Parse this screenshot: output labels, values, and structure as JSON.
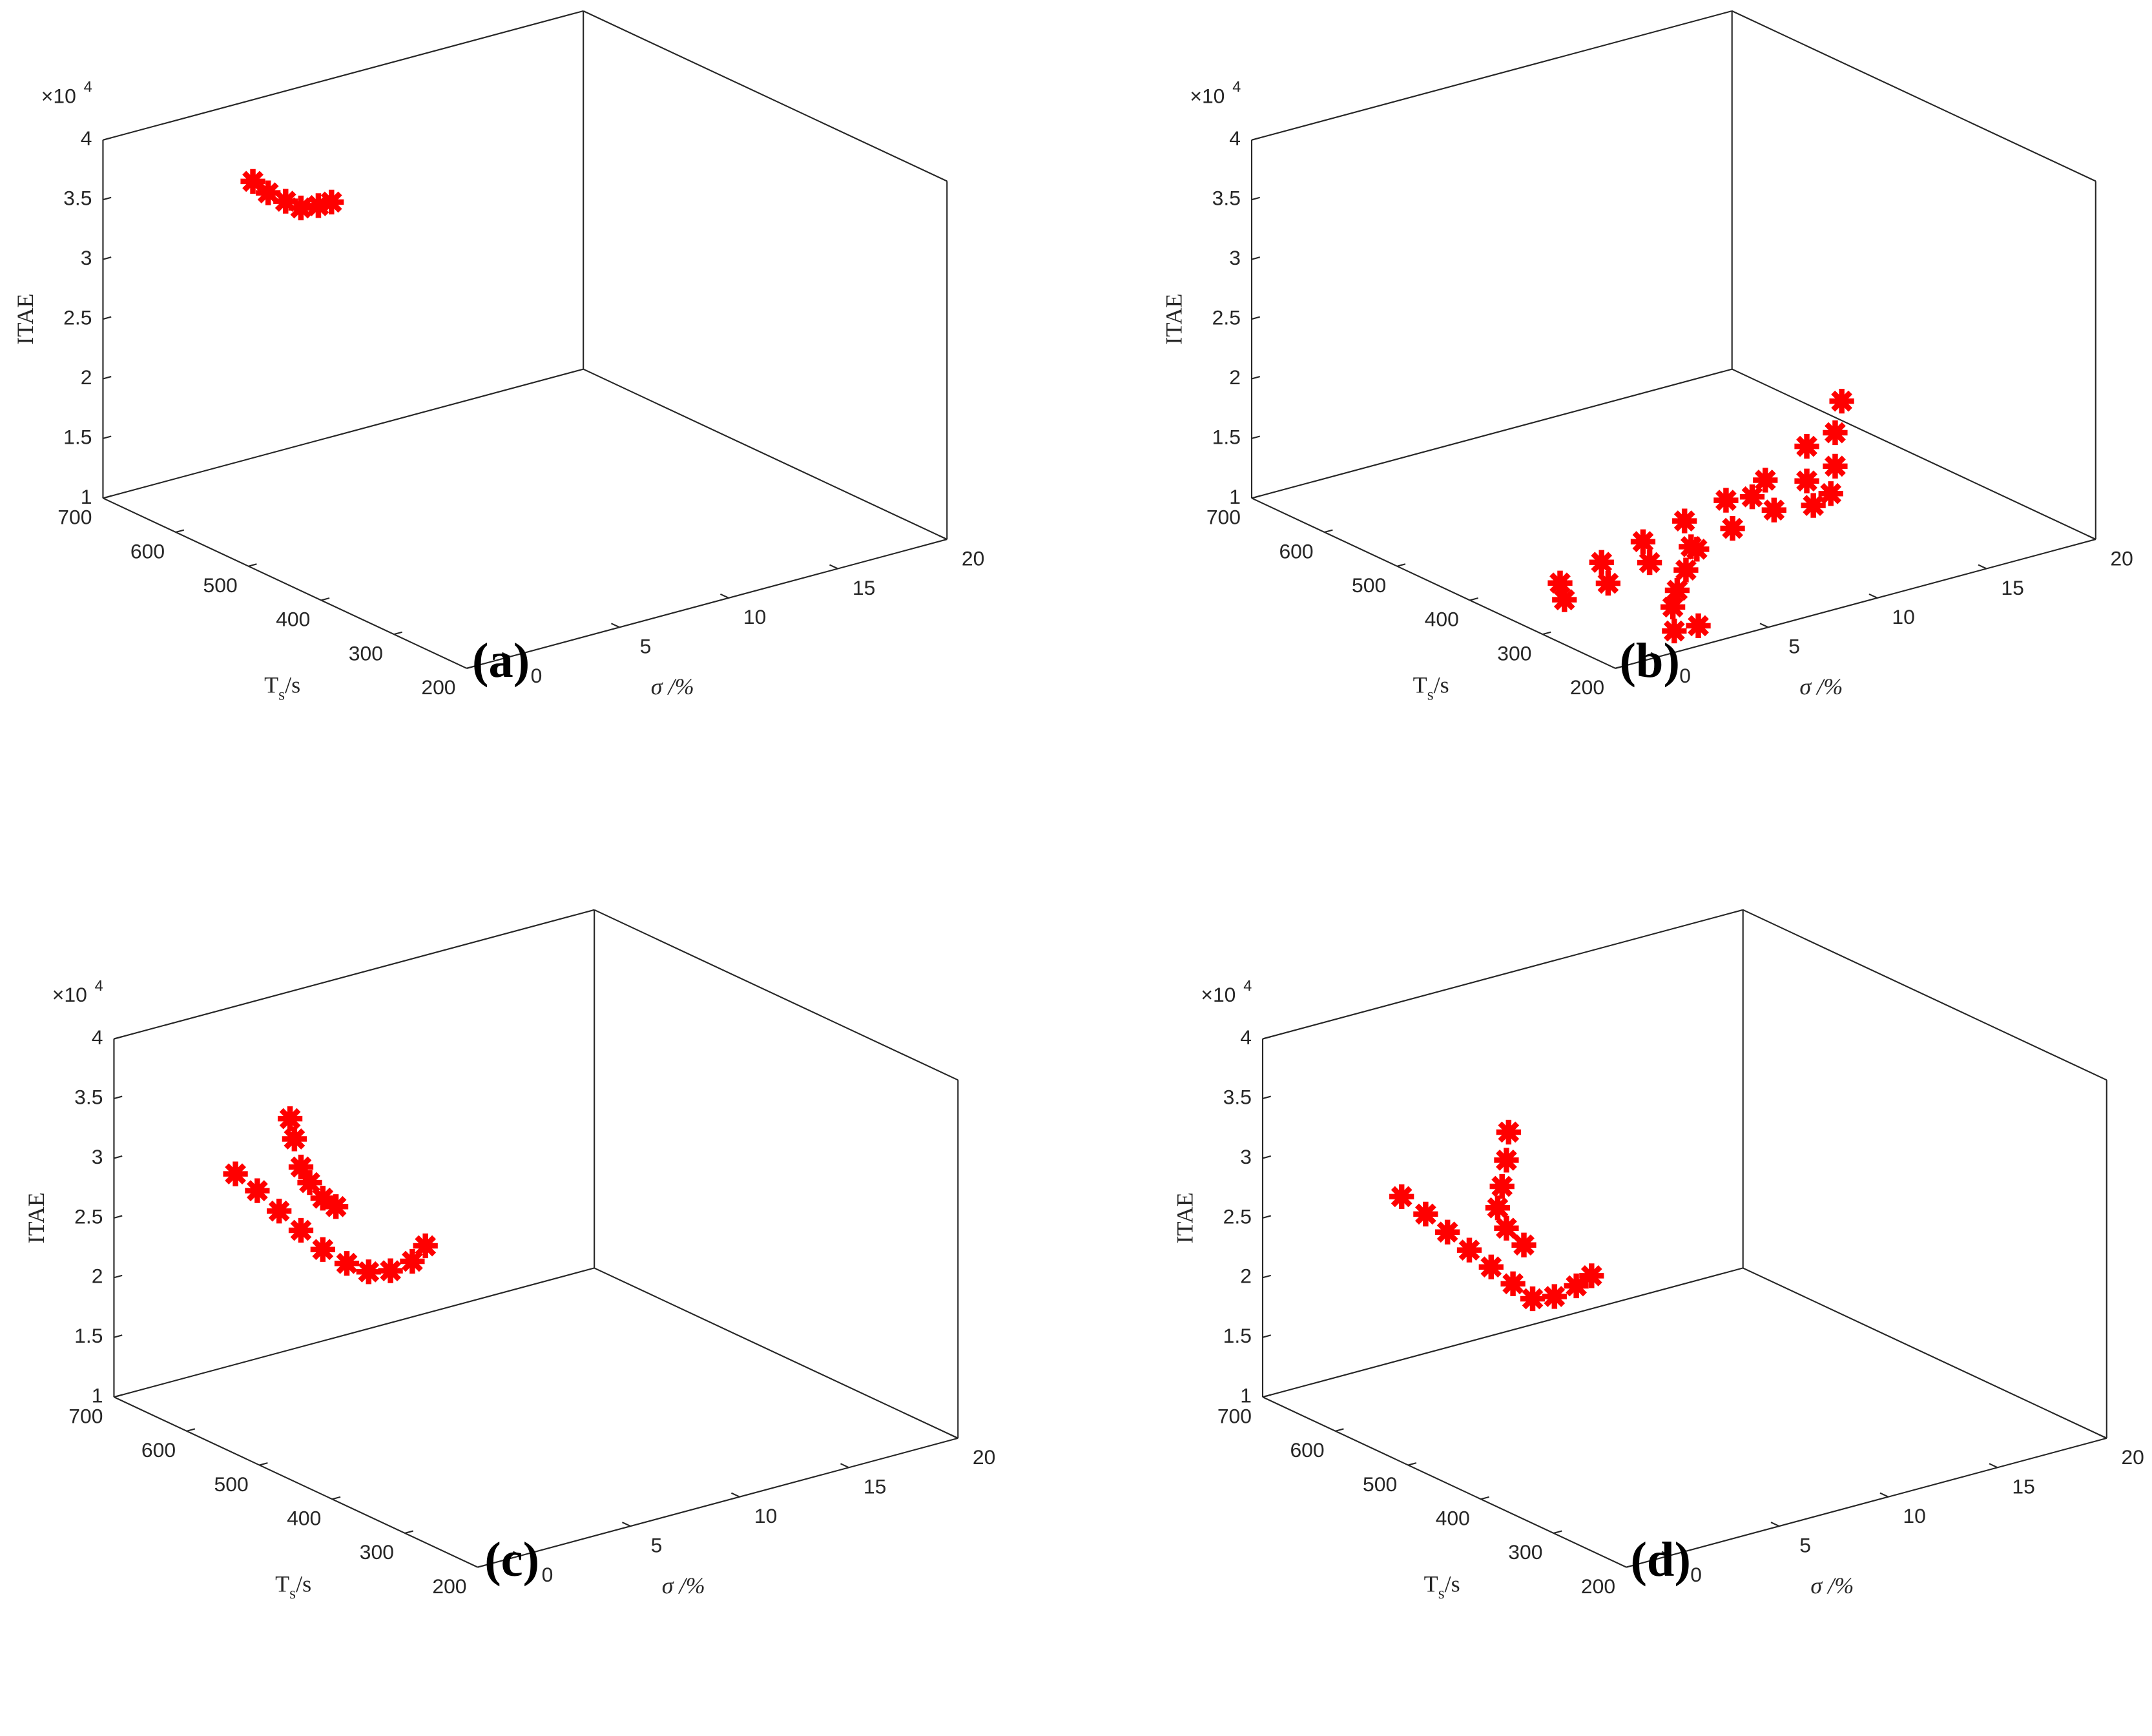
{
  "chart_data": [
    {
      "type": "scatter3d",
      "label": "(a)",
      "xlabel": "σ /%",
      "ylabel": "T",
      "ylabel_subscript": "s",
      "ylabel_suffix": "/s",
      "zlabel": "ITAE",
      "zscale_base": "×10",
      "zscale_exponent": "4",
      "xlim": [
        -2,
        20
      ],
      "xticks": [
        0,
        5,
        10,
        15,
        20
      ],
      "ylim": [
        200,
        700
      ],
      "yticks": [
        700,
        600,
        500,
        400,
        300,
        200
      ],
      "zlim": [
        1,
        4
      ],
      "zticks": [
        1,
        1.5,
        2,
        2.5,
        3,
        3.5,
        4
      ],
      "series": [
        {
          "color": "#ff0000",
          "x": [
            3.2,
            3.9,
            4.7,
            5.4,
            6.2,
            6.8
          ],
          "y": [
            650,
            650,
            650,
            650,
            650,
            650
          ],
          "z": [
            3.54,
            3.41,
            3.3,
            3.21,
            3.19,
            3.19
          ]
        }
      ]
    },
    {
      "type": "scatter3d",
      "label": "(b)",
      "xlabel": "σ /%",
      "ylabel": "T",
      "ylabel_subscript": "s",
      "ylabel_suffix": "/s",
      "zlabel": "ITAE",
      "zscale_base": "×10",
      "zscale_exponent": "4",
      "xlim": [
        -2,
        20
      ],
      "xticks": [
        0,
        5,
        10,
        15,
        20
      ],
      "ylim": [
        200,
        700
      ],
      "yticks": [
        700,
        600,
        500,
        400,
        300,
        200
      ],
      "zlim": [
        1,
        4
      ],
      "zticks": [
        1,
        1.5,
        2,
        2.5,
        3,
        3.5,
        4
      ],
      "series": [
        {
          "color": "#ff0000",
          "x": [
            -1.2,
            -1.0,
            0.7,
            1.0,
            2.6,
            2.9,
            4.5,
            4.8,
            6.4,
            6.7,
            8.2,
            8.6,
            10.1,
            10.1,
            10.4,
            11.7,
            11.4,
            11.4,
            11.2,
            7.6,
            3.4,
            2.9,
            2.5,
            2.3,
            0.7,
            1.8
          ],
          "y": [
            300,
            300,
            300,
            300,
            300,
            300,
            300,
            300,
            300,
            300,
            300,
            300,
            300,
            300,
            300,
            300,
            300,
            300,
            300,
            300,
            250,
            250,
            250,
            250,
            200,
            200
          ],
          "z": [
            1.39,
            1.24,
            1.47,
            1.28,
            1.55,
            1.36,
            1.63,
            1.4,
            1.71,
            1.46,
            1.79,
            1.52,
            1.98,
            1.69,
            1.47,
            2.28,
            2.03,
            1.75,
            1.53,
            1.68,
            1.59,
            1.44,
            1.29,
            1.16,
            1.18,
            1.17
          ]
        }
      ]
    },
    {
      "type": "scatter3d",
      "label": "(c)",
      "xlabel": "σ /%",
      "ylabel": "T",
      "ylabel_subscript": "s",
      "ylabel_suffix": "/s",
      "zlabel": "ITAE",
      "zscale_base": "×10",
      "zscale_exponent": "4",
      "xlim": [
        -2,
        20
      ],
      "xticks": [
        0,
        5,
        10,
        15,
        20
      ],
      "ylim": [
        200,
        700
      ],
      "yticks": [
        700,
        600,
        500,
        400,
        300,
        200
      ],
      "zlim": [
        1,
        4
      ],
      "zticks": [
        1,
        1.5,
        2,
        2.5,
        3,
        3.5,
        4
      ],
      "series": [
        {
          "color": "#ff0000",
          "x": [
            4.4,
            4.6,
            4.9,
            5.3,
            5.9,
            6.5,
            1.9,
            2.9,
            3.9,
            4.9,
            5.9,
            7.0,
            8.0,
            9.0,
            10.0,
            10.6
          ],
          "y": [
            650,
            650,
            650,
            650,
            650,
            650,
            650,
            650,
            650,
            650,
            650,
            650,
            650,
            650,
            650,
            650
          ],
          "z": [
            3.16,
            2.98,
            2.73,
            2.58,
            2.42,
            2.32,
            2.82,
            2.63,
            2.41,
            2.2,
            1.99,
            1.82,
            1.7,
            1.66,
            1.69,
            1.79
          ]
        }
      ]
    },
    {
      "type": "scatter3d",
      "label": "(d)",
      "xlabel": "σ /%",
      "ylabel": "T",
      "ylabel_subscript": "s",
      "ylabel_suffix": "/s",
      "zlabel": "ITAE",
      "zscale_base": "×10",
      "zscale_exponent": "4",
      "xlim": [
        -2,
        20
      ],
      "xticks": [
        0,
        5,
        10,
        15,
        20
      ],
      "ylim": [
        200,
        700
      ],
      "yticks": [
        700,
        600,
        500,
        400,
        300,
        200
      ],
      "zlim": [
        1,
        4
      ],
      "zticks": [
        1,
        1.5,
        2,
        2.5,
        3,
        3.5,
        4
      ],
      "series": [
        {
          "color": "#ff0000",
          "x": [
            7.6,
            7.5,
            7.3,
            7.1,
            7.5,
            8.3,
            2.7,
            3.8,
            4.8,
            5.8,
            6.8,
            7.8,
            8.7,
            9.7,
            10.7,
            11.4
          ],
          "y": [
            650,
            650,
            650,
            650,
            650,
            650,
            650,
            650,
            650,
            650,
            650,
            650,
            650,
            650,
            650,
            650
          ],
          "z": [
            2.89,
            2.66,
            2.45,
            2.28,
            2.09,
            1.91,
            2.59,
            2.39,
            2.19,
            1.99,
            1.8,
            1.61,
            1.44,
            1.41,
            1.45,
            1.5
          ]
        }
      ]
    }
  ]
}
